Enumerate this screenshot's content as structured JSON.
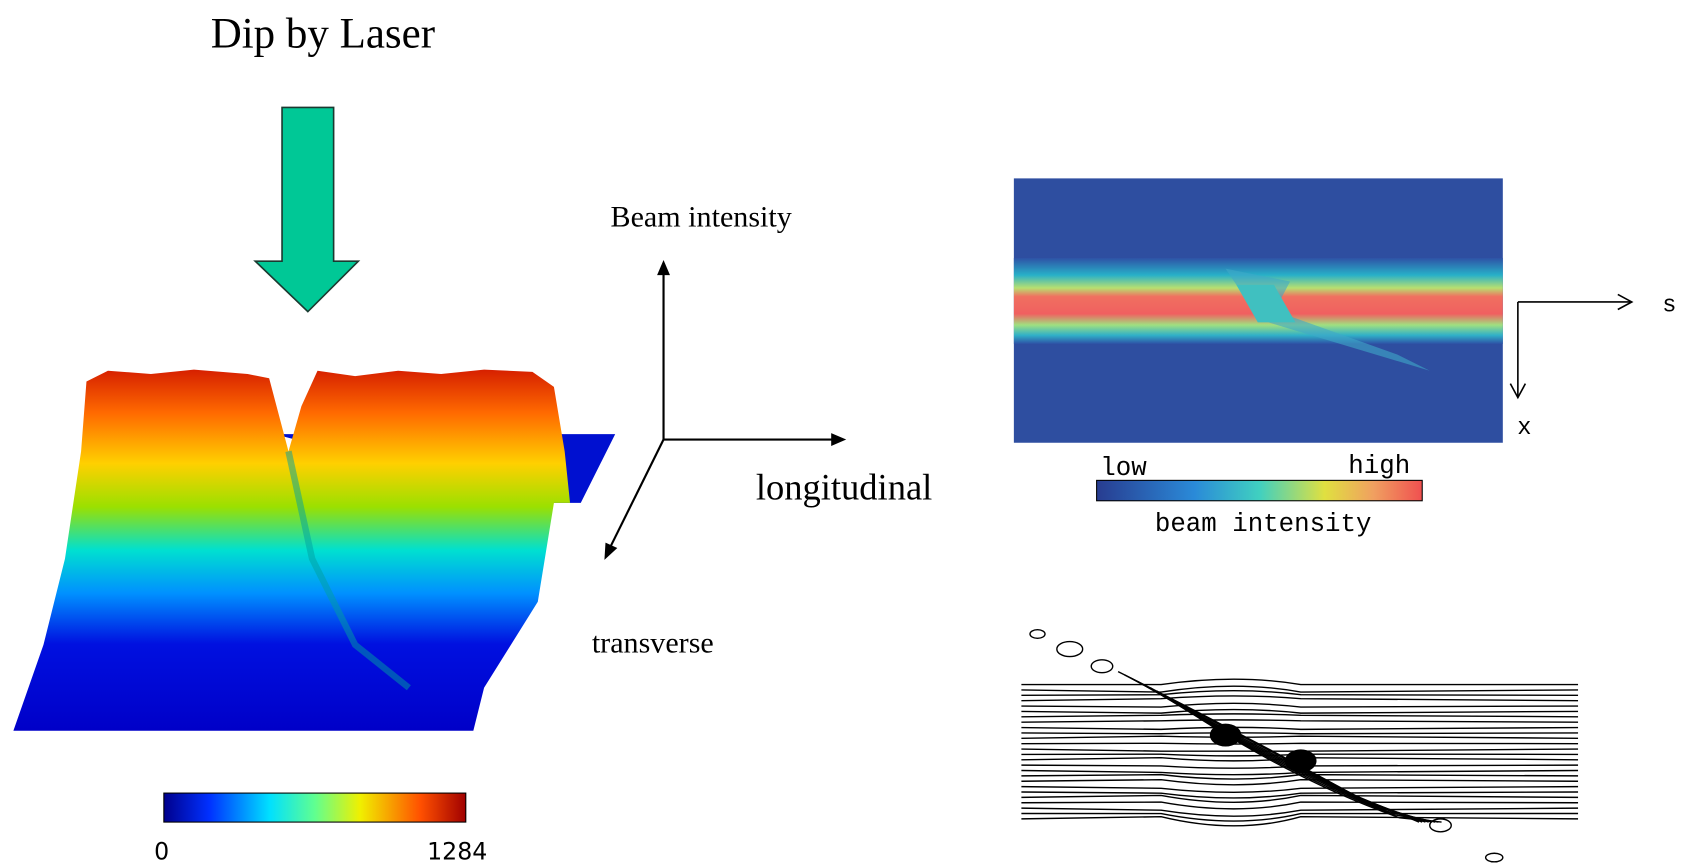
{
  "title": "Dip by Laser",
  "surface_plot": {
    "colorbar_min": 0,
    "colorbar_max": 1284
  },
  "axes": {
    "vertical": "Beam intensity",
    "longitudinal": "longitudinal",
    "transverse": "transverse"
  },
  "heatmap": {
    "s_label": "s",
    "x_label": "x",
    "low": "low",
    "high": "high",
    "caption": "beam intensity"
  }
}
